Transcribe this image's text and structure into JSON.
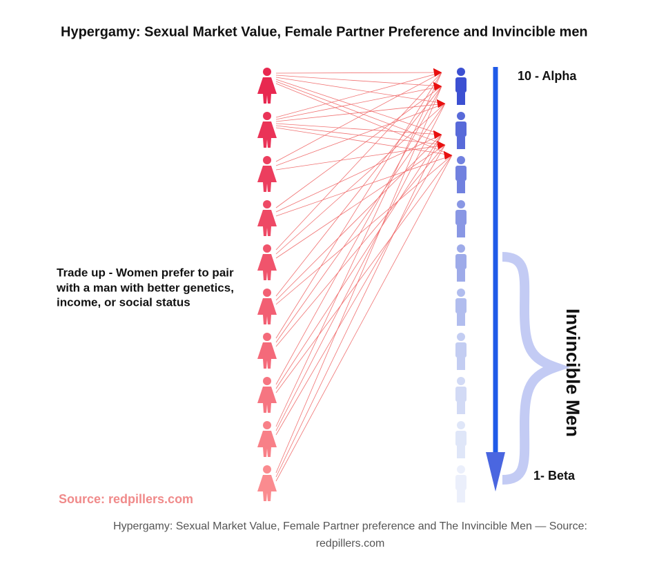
{
  "header": {
    "title": "Hypergamy: Sexual Market Value, Female Partner Preference and Invincible men"
  },
  "scale": {
    "top": "10 - Alpha",
    "bottom": "1- Beta",
    "group": "Invincible Men"
  },
  "note": {
    "lines": [
      "Trade up - Women prefer to pair",
      "with a man with better genetics,",
      "income, or social status"
    ]
  },
  "source": "Source: redpillers.com",
  "caption": "Hypergamy: Sexual Market Value, Female Partner preference and The Invincible Men — Source: redpillers.com"
}
